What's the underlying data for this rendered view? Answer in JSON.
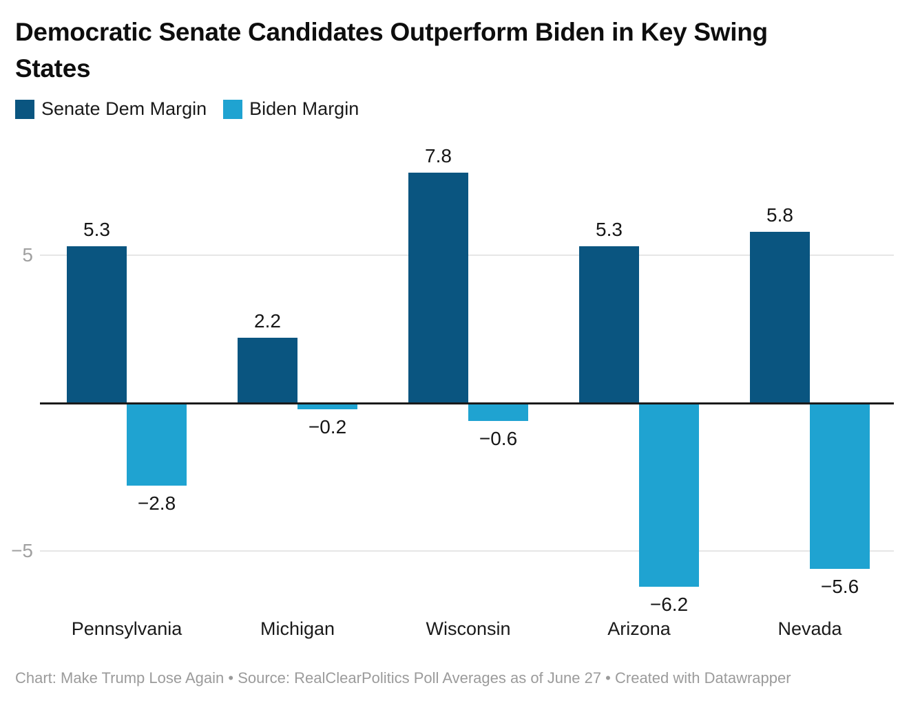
{
  "title": "Democratic Senate Candidates Outperform Biden in Key Swing\nStates",
  "legend": {
    "items": [
      {
        "label": "Senate Dem Margin",
        "color": "#0a5580"
      },
      {
        "label": "Biden Margin",
        "color": "#1fa3d1"
      }
    ]
  },
  "footer": "Chart: Make Trump Lose Again • Source: RealClearPolitics Poll Averages as of June 27 • Created with Datawrapper",
  "chart_data": {
    "type": "bar",
    "title": "Democratic Senate Candidates Outperform Biden in Key Swing States",
    "categories": [
      "Pennsylvania",
      "Michigan",
      "Wisconsin",
      "Arizona",
      "Nevada"
    ],
    "series": [
      {
        "name": "Senate Dem Margin",
        "color": "#0a5580",
        "values": [
          5.3,
          2.2,
          7.8,
          5.3,
          5.8
        ]
      },
      {
        "name": "Biden Margin",
        "color": "#1fa3d1",
        "values": [
          -2.8,
          -0.2,
          -0.6,
          -6.2,
          -5.6
        ]
      }
    ],
    "value_labels": [
      [
        "5.3",
        "2.2",
        "7.8",
        "5.3",
        "5.8"
      ],
      [
        "−2.8",
        "−0.2",
        "−0.6",
        "−6.2",
        "−5.6"
      ]
    ],
    "y_ticks": [
      {
        "value": 5,
        "label": "5"
      },
      {
        "value": -5,
        "label": "−5"
      }
    ],
    "ylim": [
      -7.5,
      9.5
    ],
    "grid": true,
    "legend_position": "top",
    "xlabel": "",
    "ylabel": "",
    "colors": {
      "grid": "#e6e6e6",
      "baseline": "#1a1a1a",
      "tick_label": "#a0a0a0"
    }
  }
}
